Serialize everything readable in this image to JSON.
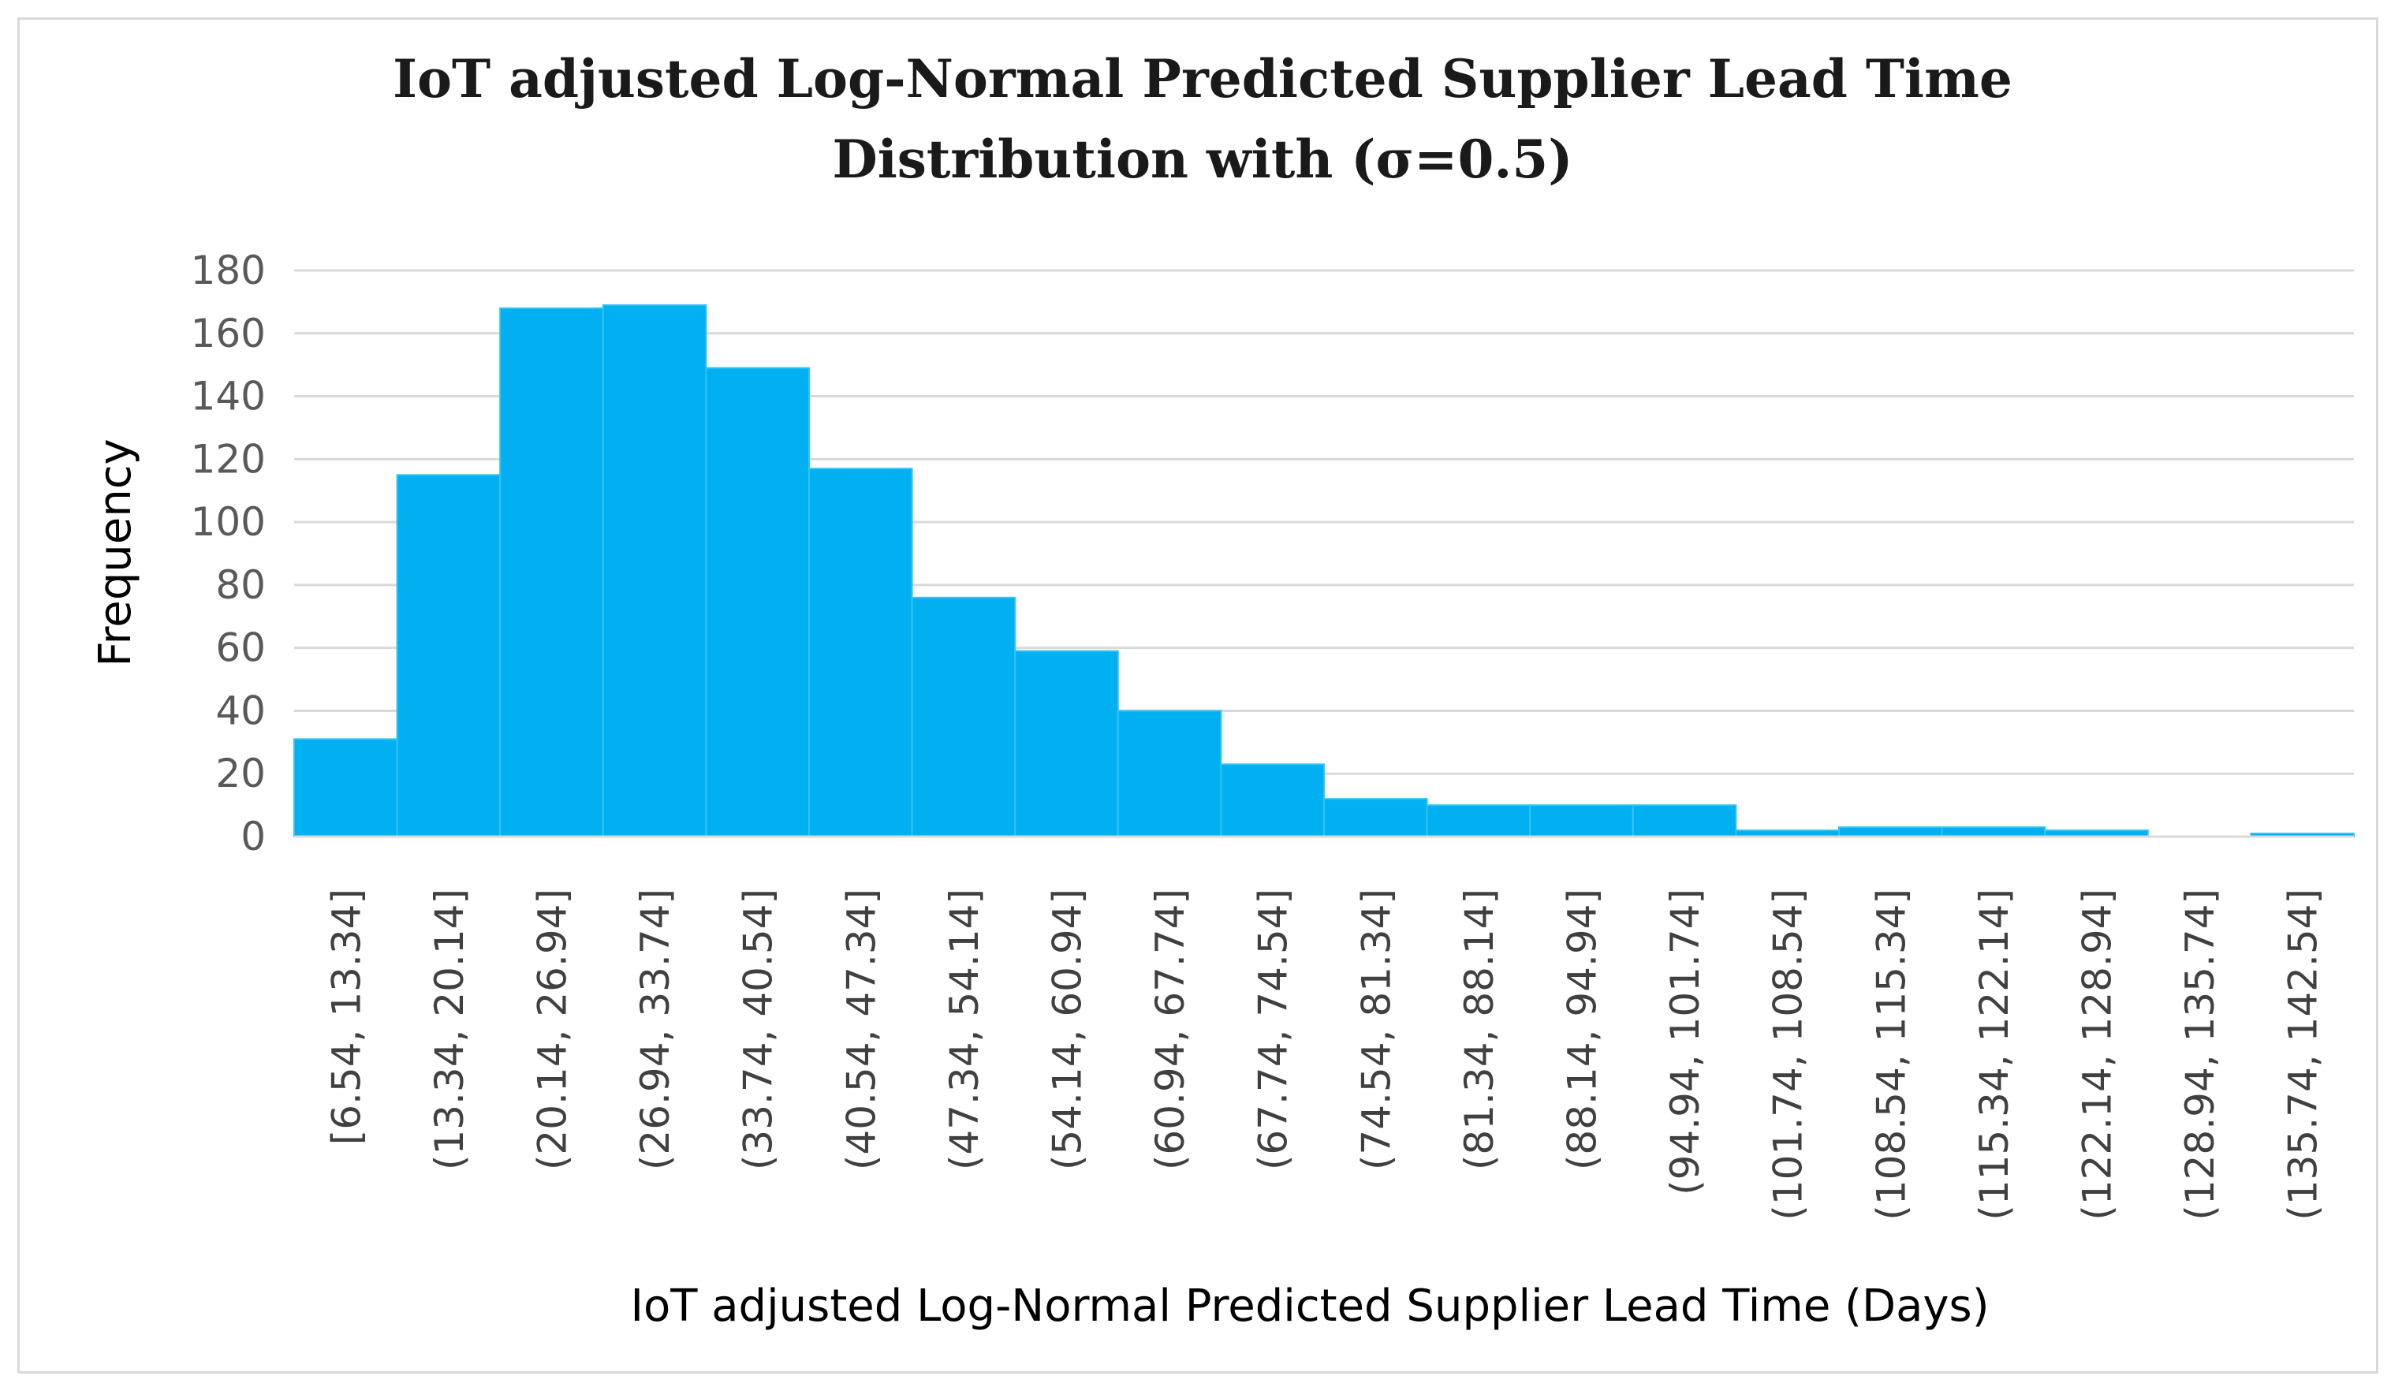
{
  "chart_data": {
    "type": "bar",
    "title": "IoT adjusted Log-Normal Predicted Supplier Lead Time Distribution with (σ=0.5)",
    "title_lines": [
      "IoT adjusted Log-Normal Predicted Supplier Lead Time",
      "Distribution with (σ=0.5)"
    ],
    "xlabel": "IoT adjusted Log-Normal Predicted Supplier Lead Time (Days)",
    "ylabel": "Frequency",
    "ylim": [
      0,
      180
    ],
    "yticks": [
      0,
      20,
      40,
      60,
      80,
      100,
      120,
      140,
      160,
      180
    ],
    "grid": true,
    "legend": "none",
    "bar_color": "#00b0f0",
    "categories": [
      "[6.54, 13.34]",
      "(13.34, 20.14]",
      "(20.14, 26.94]",
      "(26.94, 33.74]",
      "(33.74, 40.54]",
      "(40.54, 47.34]",
      "(47.34, 54.14]",
      "(54.14, 60.94]",
      "(60.94, 67.74]",
      "(67.74, 74.54]",
      "(74.54, 81.34]",
      "(81.34, 88.14]",
      "(88.14, 94.94]",
      "(94.94, 101.74]",
      "(101.74, 108.54]",
      "(108.54, 115.34]",
      "(115.34, 122.14]",
      "(122.14, 128.94]",
      "(128.94, 135.74]",
      "(135.74, 142.54]"
    ],
    "values": [
      31,
      115,
      168,
      169,
      149,
      117,
      76,
      59,
      40,
      23,
      12,
      10,
      10,
      10,
      2,
      3,
      3,
      2,
      0,
      1
    ]
  }
}
